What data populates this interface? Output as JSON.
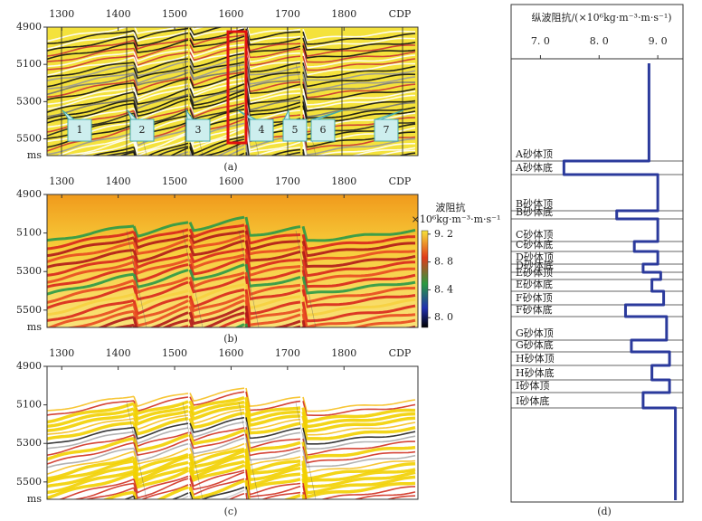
{
  "panels": [
    {
      "label": "(a)",
      "x_unit": "CDP",
      "y_unit": "ms",
      "xlim": [
        1274,
        1931
      ],
      "xticks": [
        1300,
        1400,
        1500,
        1600,
        1700,
        1800
      ],
      "ylim": [
        4900,
        5590
      ],
      "yticks": [
        4900,
        5100,
        5300,
        5500
      ],
      "wells": [
        "1",
        "2",
        "3",
        "4",
        "5",
        "6",
        "7"
      ]
    },
    {
      "label": "(b)",
      "x_unit": "CDP",
      "y_unit": "ms",
      "xlim": [
        1274,
        1931
      ],
      "xticks": [
        1300,
        1400,
        1500,
        1600,
        1700,
        1800
      ],
      "ylim": [
        4900,
        5590
      ],
      "yticks": [
        4900,
        5100,
        5300,
        5500
      ],
      "colorbar": {
        "title": "波阻抗",
        "unit": "×10⁶kg·m⁻³·m·s⁻¹",
        "lim": [
          7.86,
          9.25
        ],
        "ticks": [
          {
            "value": 9.2,
            "label": "9. 2"
          },
          {
            "value": 8.8,
            "label": "8. 8"
          },
          {
            "value": 8.4,
            "label": "8. 4"
          },
          {
            "value": 8.0,
            "label": "8. 0"
          }
        ]
      }
    },
    {
      "label": "(c)",
      "x_unit": "CDP",
      "y_unit": "ms",
      "xlim": [
        1274,
        1931
      ],
      "xticks": [
        1300,
        1400,
        1500,
        1600,
        1700,
        1800
      ],
      "ylim": [
        4900,
        5590
      ],
      "yticks": [
        4900,
        5100,
        5300,
        5500
      ]
    }
  ],
  "log": {
    "label": "(d)",
    "title": "纵波阻抗/(×10⁶kg·m⁻³·m·s⁻¹)",
    "xlim": [
      6.5,
      9.43
    ],
    "xticks": [
      {
        "value": 7,
        "label": "7. 0"
      },
      {
        "value": 8,
        "label": "8. 0"
      },
      {
        "value": 9,
        "label": "9. 0"
      }
    ],
    "horizons": [
      "A砂体顶",
      "A砂体底",
      "B砂体顶",
      "B砂体底",
      "C砂体顶",
      "C砂体底",
      "D砂体顶",
      "D砂体底",
      "E砂体顶",
      "E砂体底",
      "F砂体顶",
      "F砂体底",
      "G砂体顶",
      "G砂体底",
      "H砂体顶",
      "H砂体底",
      "I砂体顶",
      "I砂体底"
    ],
    "values": [
      8.85,
      7.4,
      9.0,
      8.3,
      9.0,
      8.6,
      9.0,
      8.75,
      9.05,
      8.9,
      9.1,
      8.45,
      9.15,
      8.55,
      9.2,
      8.9,
      9.2,
      8.75,
      9.3
    ]
  }
}
